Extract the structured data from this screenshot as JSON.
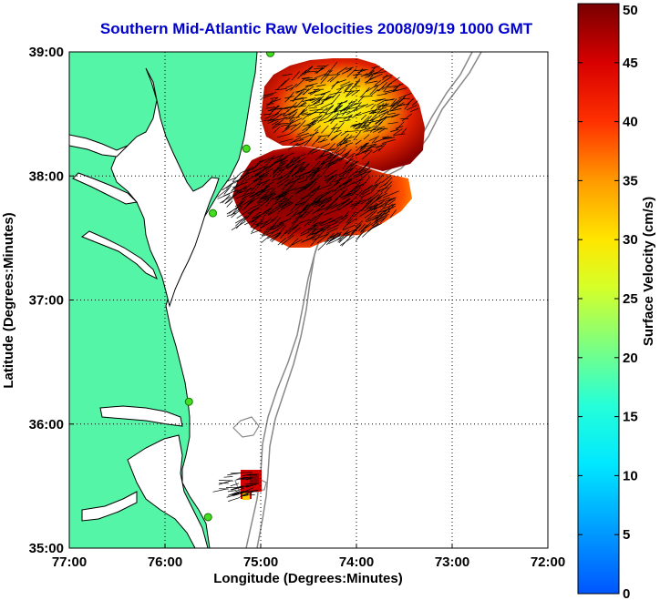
{
  "title": "Southern Mid-Atlantic Raw Velocities 2008/09/19 1000 GMT",
  "map": {
    "x_axis_title": "Longitude (Degrees:Minutes)",
    "y_axis_title": "Latitude (Degrees:Minutes)",
    "lon_range": [
      -77,
      -72
    ],
    "lat_range": [
      35,
      39
    ],
    "x_ticks": [
      {
        "value": -77,
        "label": "77:00"
      },
      {
        "value": -76,
        "label": "76:00"
      },
      {
        "value": -75,
        "label": "75:00"
      },
      {
        "value": -74,
        "label": "74:00"
      },
      {
        "value": -73,
        "label": "73:00"
      },
      {
        "value": -72,
        "label": "72:00"
      }
    ],
    "y_ticks": [
      {
        "value": 35,
        "label": "35:00"
      },
      {
        "value": 36,
        "label": "36:00"
      },
      {
        "value": 37,
        "label": "37:00"
      },
      {
        "value": 38,
        "label": "38:00"
      },
      {
        "value": 39,
        "label": "39:00"
      }
    ],
    "land_color": "#55f5a8",
    "grid": "dotted",
    "radar_stations": [
      {
        "lon": -74.9,
        "lat": 38.99
      },
      {
        "lon": -75.15,
        "lat": 38.22
      },
      {
        "lon": -75.5,
        "lat": 37.7
      },
      {
        "lon": -75.75,
        "lat": 36.18
      },
      {
        "lon": -75.55,
        "lat": 35.25
      }
    ]
  },
  "colorbar": {
    "label": "Surface Velocity (cm/s)",
    "min": 0,
    "max": 50,
    "ticks": [
      "0",
      "5",
      "10",
      "15",
      "20",
      "25",
      "30",
      "35",
      "40",
      "45",
      "50"
    ],
    "position": "right"
  }
}
